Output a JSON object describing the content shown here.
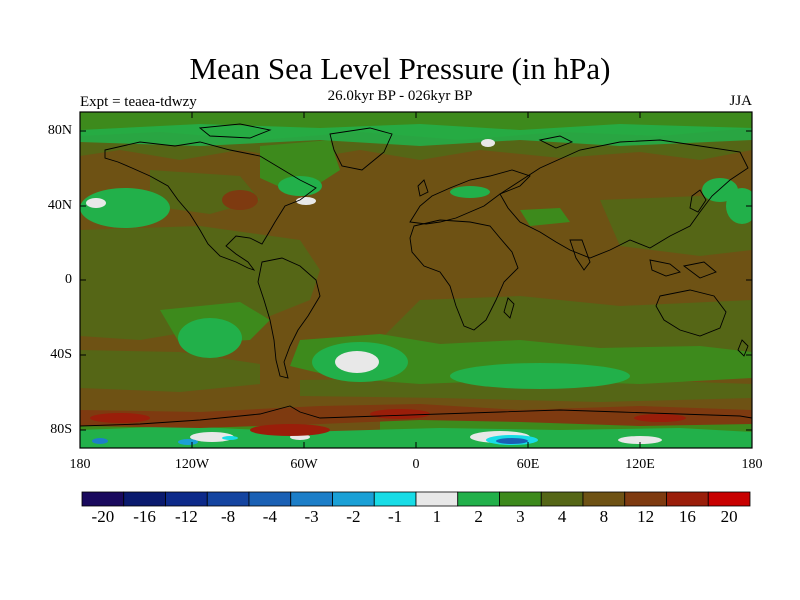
{
  "map": {
    "title": "Mean Sea Level Pressure (in hPa)",
    "subtitle": "26.0kyr BP - 026kyr BP",
    "left_label": "Expt = teaea-tdwzy",
    "right_label": "JJA",
    "lat_labels": [
      "80N",
      "40N",
      "0",
      "40S",
      "80S"
    ],
    "lon_labels": [
      "180",
      "120W",
      "60W",
      "0",
      "60E",
      "120E",
      "180"
    ],
    "projection": "cylindrical equidistant",
    "lon_range": [
      -180,
      180
    ],
    "lat_range": [
      -90,
      90
    ]
  },
  "colorbar": {
    "labels": [
      "-20",
      "-16",
      "-12",
      "-8",
      "-4",
      "-3",
      "-2",
      "-1",
      "1",
      "2",
      "3",
      "4",
      "8",
      "12",
      "16",
      "20"
    ],
    "colors": [
      "#1a0a5e",
      "#0a1a6e",
      "#0d2a8a",
      "#1444a0",
      "#1a60b4",
      "#1c7ec8",
      "#1aa0d6",
      "#18dce6",
      "#e8e8e8",
      "#22b04a",
      "#3d8a1c",
      "#556616",
      "#6e5214",
      "#7e3a10",
      "#9a1e0a",
      "#c80000"
    ]
  },
  "chart_data": {
    "type": "heatmap",
    "title": "Mean Sea Level Pressure (in hPa)",
    "subtitle": "26.0kyr BP - 026kyr BP",
    "experiment": "Expt = teaea-tdwzy",
    "season": "JJA",
    "x_axis": {
      "ticks": [
        "180",
        "120W",
        "60W",
        "0",
        "60E",
        "120E",
        "180"
      ],
      "range": [
        -180,
        180
      ]
    },
    "y_axis": {
      "ticks": [
        "80N",
        "40N",
        "0",
        "40S",
        "80S"
      ],
      "range": [
        -90,
        90
      ]
    },
    "levels": [
      -20,
      -16,
      -12,
      -8,
      -4,
      -3,
      -2,
      -1,
      1,
      2,
      3,
      4,
      8,
      12,
      16,
      20
    ],
    "dominant_range": "4 to 8 hPa over most of the globe",
    "grid": false,
    "legend": "bottom"
  }
}
